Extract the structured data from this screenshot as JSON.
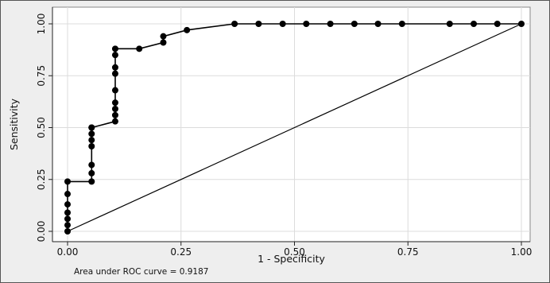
{
  "chart_data": {
    "type": "line",
    "title": "",
    "xlabel": "1 - Specificity",
    "ylabel": "Sensitivity",
    "xlim": [
      0,
      1
    ],
    "ylim": [
      0,
      1
    ],
    "grid": true,
    "x_ticks": [
      "0.00",
      "0.25",
      "0.50",
      "0.75",
      "1.00"
    ],
    "y_ticks": [
      "0.00",
      "0.25",
      "0.50",
      "0.75",
      "1.00"
    ],
    "annotation": "Area under ROC curve = 0.9187",
    "series": [
      {
        "kind": "roc-curve-with-markers",
        "x": [
          0,
          0,
          0,
          0,
          0,
          0,
          0,
          0.053,
          0.053,
          0.053,
          0.053,
          0.053,
          0.053,
          0.053,
          0.053,
          0.105,
          0.105,
          0.105,
          0.105,
          0.105,
          0.105,
          0.105,
          0.105,
          0.105,
          0.158,
          0.211,
          0.211,
          0.263,
          0.368,
          0.421,
          0.474,
          0.526,
          0.579,
          0.632,
          0.684,
          0.737,
          0.842,
          0.895,
          0.947,
          1.0
        ],
        "y": [
          0,
          0.03,
          0.06,
          0.09,
          0.13,
          0.18,
          0.24,
          0.24,
          0.28,
          0.32,
          0.41,
          0.44,
          0.47,
          0.5,
          0.5,
          0.53,
          0.56,
          0.59,
          0.62,
          0.68,
          0.76,
          0.79,
          0.85,
          0.88,
          0.88,
          0.91,
          0.94,
          0.97,
          1.0,
          1.0,
          1.0,
          1.0,
          1.0,
          1.0,
          1.0,
          1.0,
          1.0,
          1.0,
          1.0,
          1.0
        ]
      },
      {
        "kind": "reference-line",
        "x": [
          0,
          1
        ],
        "y": [
          0,
          1
        ]
      }
    ],
    "colors": {
      "frame_background": "#eeeeee",
      "plot_background": "#ffffff",
      "grid": "#dcdcdc",
      "line": "#000000"
    }
  }
}
